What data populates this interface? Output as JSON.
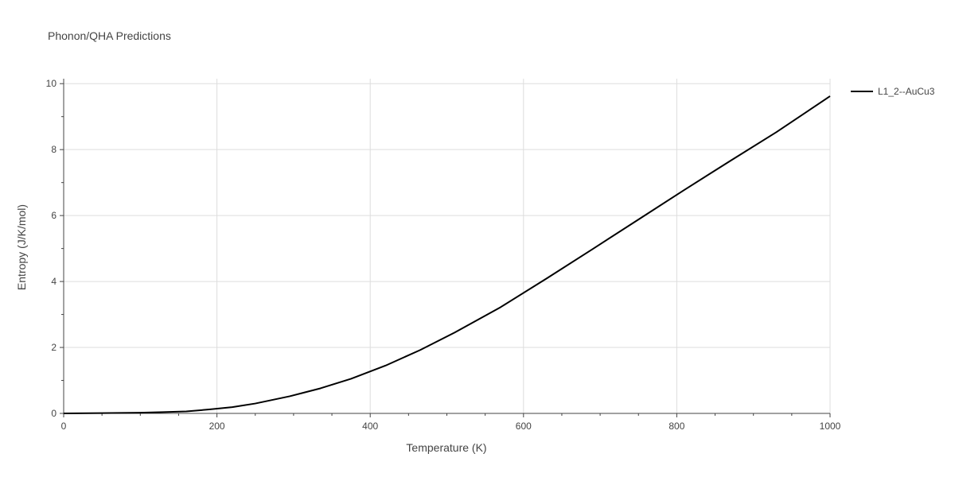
{
  "chart_data": {
    "type": "line",
    "title": "Phonon/QHA Predictions",
    "xlabel": "Temperature (K)",
    "ylabel": "Entropy (J/K/mol)",
    "xlim": [
      0,
      1000
    ],
    "ylim": [
      0,
      10.15
    ],
    "xticks": [
      0,
      200,
      400,
      600,
      800,
      1000
    ],
    "yticks": [
      0,
      2,
      4,
      6,
      8,
      10
    ],
    "grid": true,
    "legend_position": "top-right",
    "series": [
      {
        "name": "L1_2--AuCu3",
        "color": "#000000",
        "x": [
          0,
          50,
          100,
          130,
          160,
          190,
          220,
          250,
          295,
          335,
          375,
          420,
          465,
          510,
          570,
          630,
          690,
          750,
          810,
          870,
          930,
          1000
        ],
        "y": [
          0,
          0.01,
          0.02,
          0.04,
          0.06,
          0.12,
          0.19,
          0.3,
          0.52,
          0.76,
          1.05,
          1.45,
          1.92,
          2.45,
          3.22,
          4.09,
          4.98,
          5.88,
          6.78,
          7.66,
          8.53,
          9.62
        ]
      }
    ]
  }
}
